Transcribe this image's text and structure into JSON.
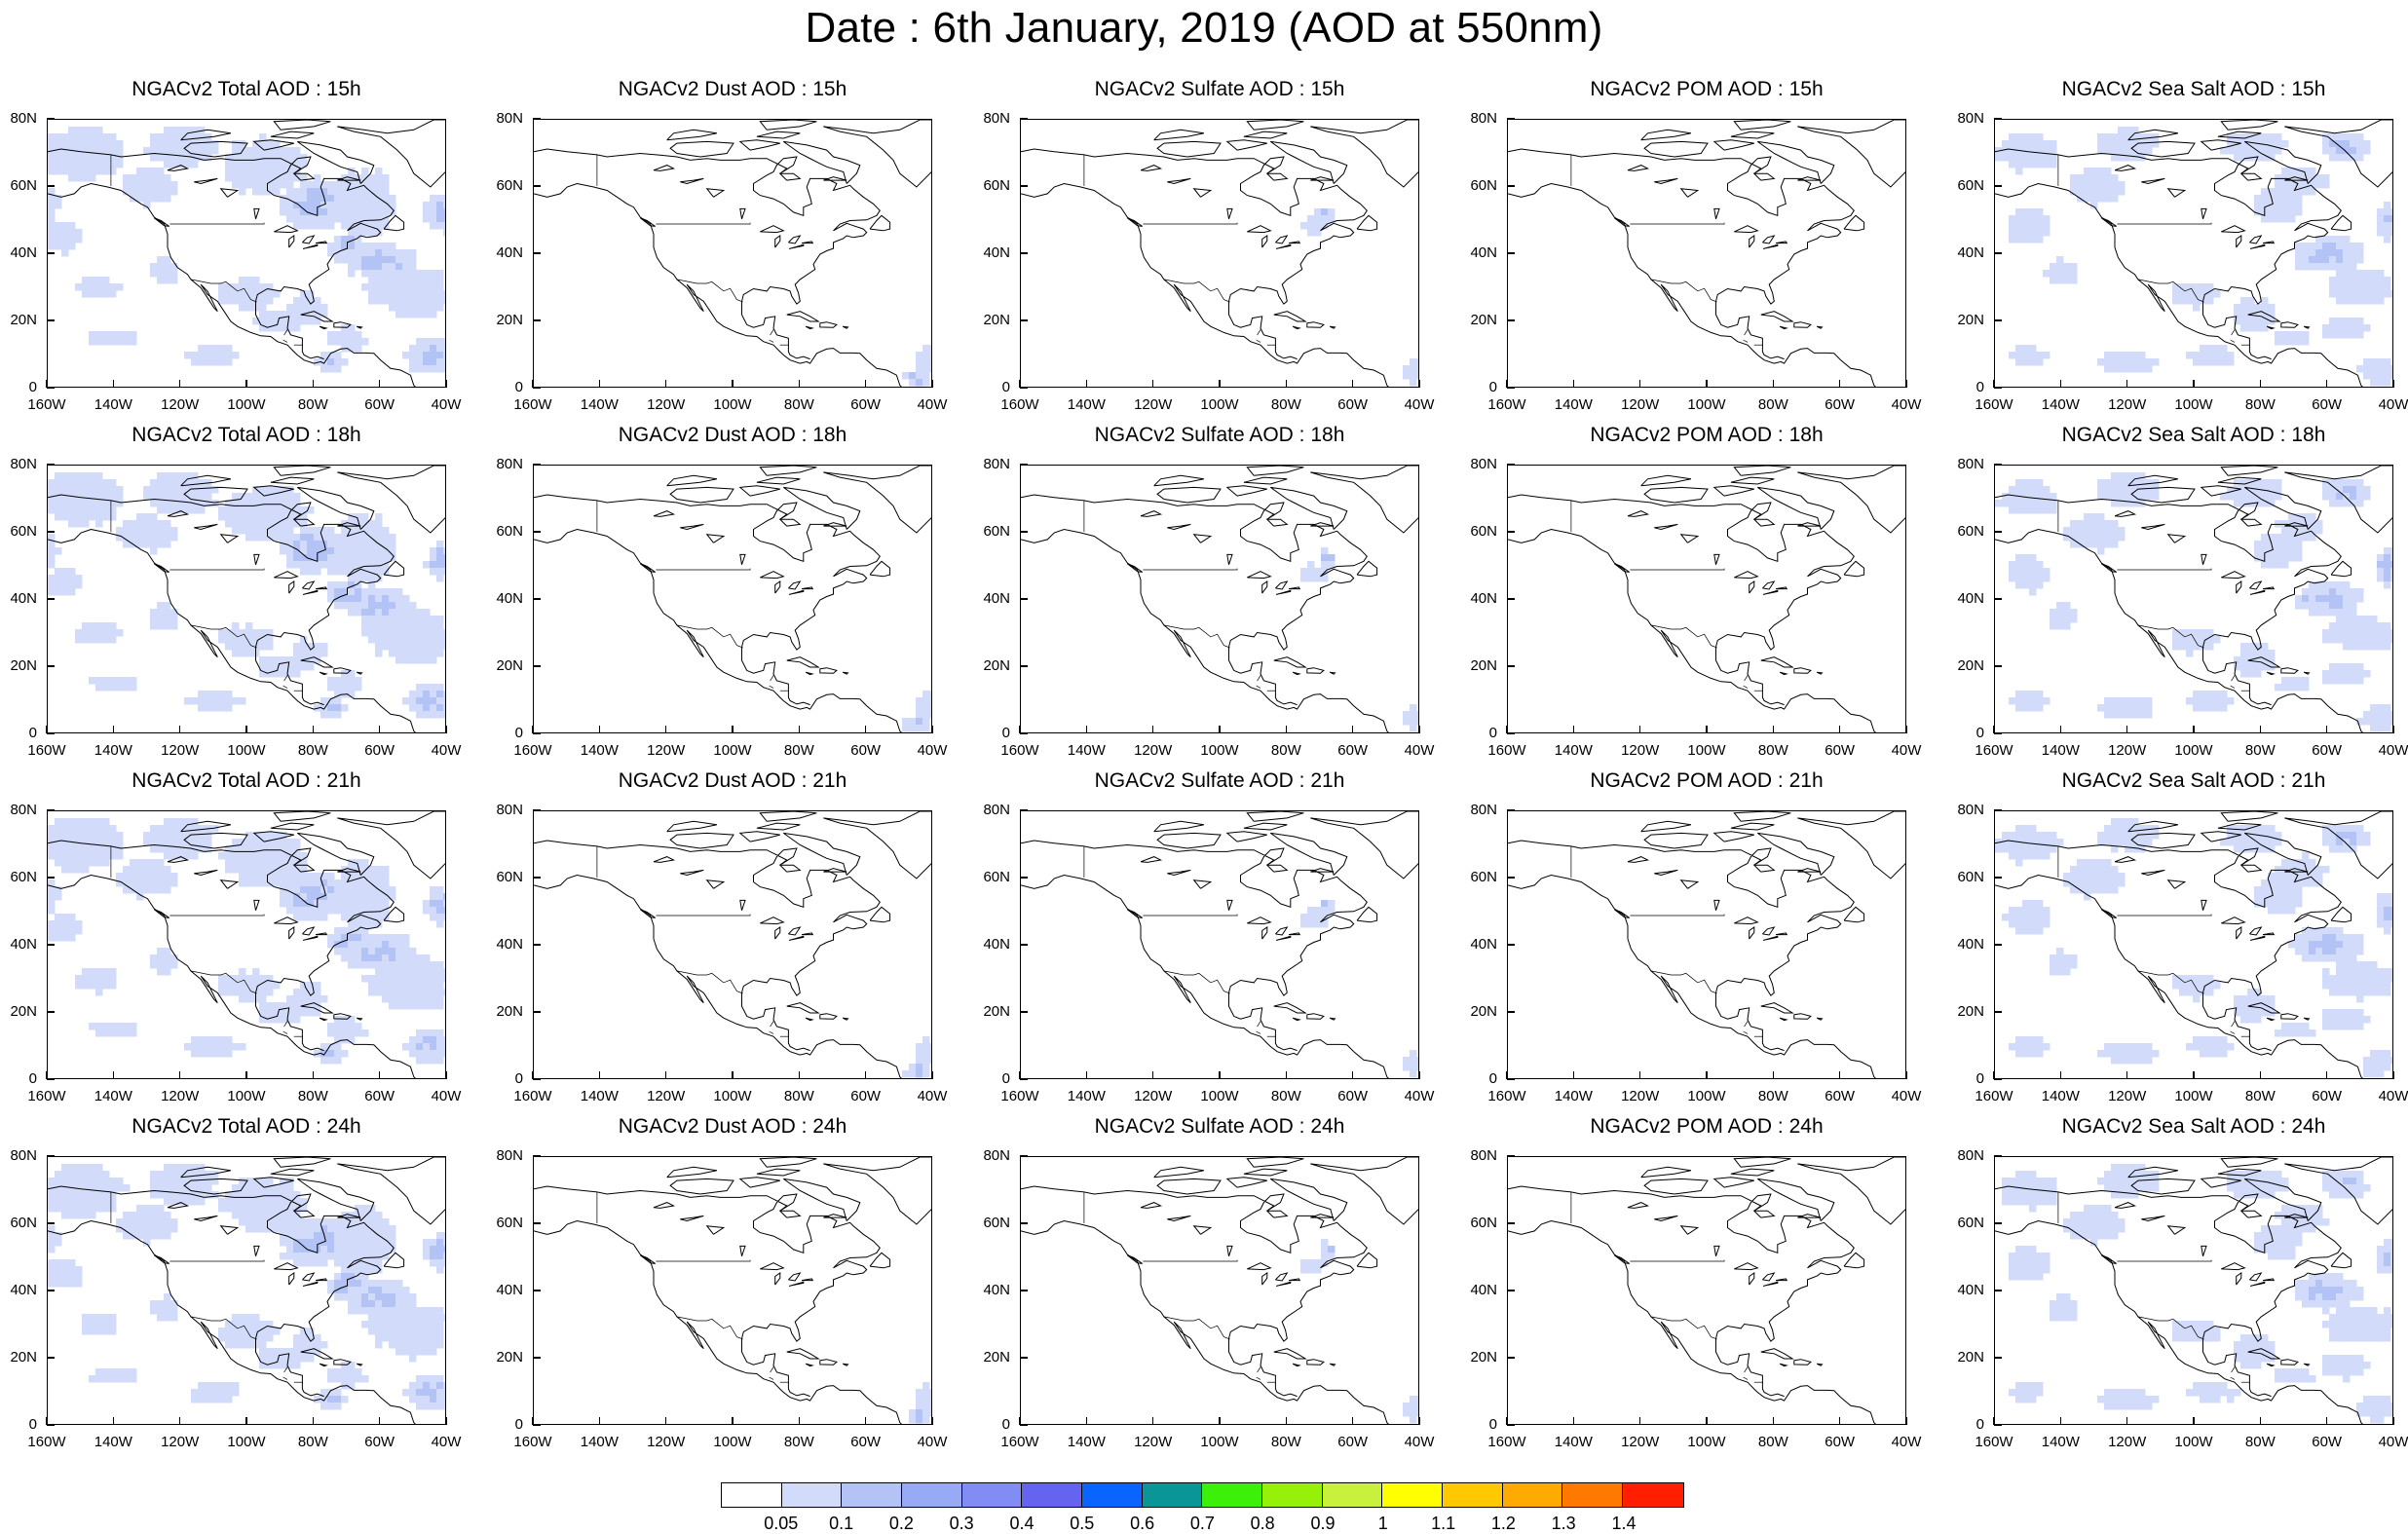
{
  "title": "Date : 6th January, 2019 (AOD at 550nm)",
  "axes": {
    "lat_labels": [
      "80N",
      "60N",
      "40N",
      "20N",
      "0"
    ],
    "lon_labels": [
      "160W",
      "140W",
      "120W",
      "100W",
      "80W",
      "60W",
      "40W"
    ]
  },
  "rows": [
    {
      "hour": "15h",
      "panels": [
        {
          "title": "NGACv2 Total AOD : 15h",
          "kind": "total"
        },
        {
          "title": "NGACv2 Dust AOD : 15h",
          "kind": "dust"
        },
        {
          "title": "NGACv2 Sulfate AOD : 15h",
          "kind": "sulfate"
        },
        {
          "title": "NGACv2 POM AOD : 15h",
          "kind": "pom"
        },
        {
          "title": "NGACv2 Sea Salt AOD : 15h",
          "kind": "seasalt"
        }
      ]
    },
    {
      "hour": "18h",
      "panels": [
        {
          "title": "NGACv2 Total AOD : 18h",
          "kind": "total"
        },
        {
          "title": "NGACv2 Dust AOD : 18h",
          "kind": "dust"
        },
        {
          "title": "NGACv2 Sulfate AOD : 18h",
          "kind": "sulfate"
        },
        {
          "title": "NGACv2 POM AOD : 18h",
          "kind": "pom"
        },
        {
          "title": "NGACv2 Sea Salt AOD : 18h",
          "kind": "seasalt"
        }
      ]
    },
    {
      "hour": "21h",
      "panels": [
        {
          "title": "NGACv2 Total AOD : 21h",
          "kind": "total"
        },
        {
          "title": "NGACv2 Dust AOD : 21h",
          "kind": "dust"
        },
        {
          "title": "NGACv2 Sulfate AOD : 21h",
          "kind": "sulfate"
        },
        {
          "title": "NGACv2 POM AOD : 21h",
          "kind": "pom"
        },
        {
          "title": "NGACv2 Sea Salt AOD : 21h",
          "kind": "seasalt"
        }
      ]
    },
    {
      "hour": "24h",
      "panels": [
        {
          "title": "NGACv2 Total AOD : 24h",
          "kind": "total"
        },
        {
          "title": "NGACv2 Dust AOD : 24h",
          "kind": "dust"
        },
        {
          "title": "NGACv2 Sulfate AOD : 24h",
          "kind": "sulfate"
        },
        {
          "title": "NGACv2 POM AOD : 24h",
          "kind": "pom"
        },
        {
          "title": "NGACv2 Sea Salt  AOD : 24h",
          "kind": "seasalt"
        }
      ]
    }
  ],
  "colorbar": {
    "colors": [
      "#ffffff",
      "#d2dcfa",
      "#b4c3f5",
      "#96aaf5",
      "#828cf5",
      "#6464f0",
      "#0a64ff",
      "#0a9696",
      "#3cf00a",
      "#96f00a",
      "#c8f03c",
      "#ffff00",
      "#ffc800",
      "#ffaa00",
      "#ff7800",
      "#ff1e00"
    ],
    "labels": [
      "0.05",
      "0.1",
      "0.2",
      "0.3",
      "0.4",
      "0.5",
      "0.6",
      "0.7",
      "0.8",
      "0.9",
      "1",
      "1.1",
      "1.2",
      "1.3",
      "1.4"
    ]
  }
}
